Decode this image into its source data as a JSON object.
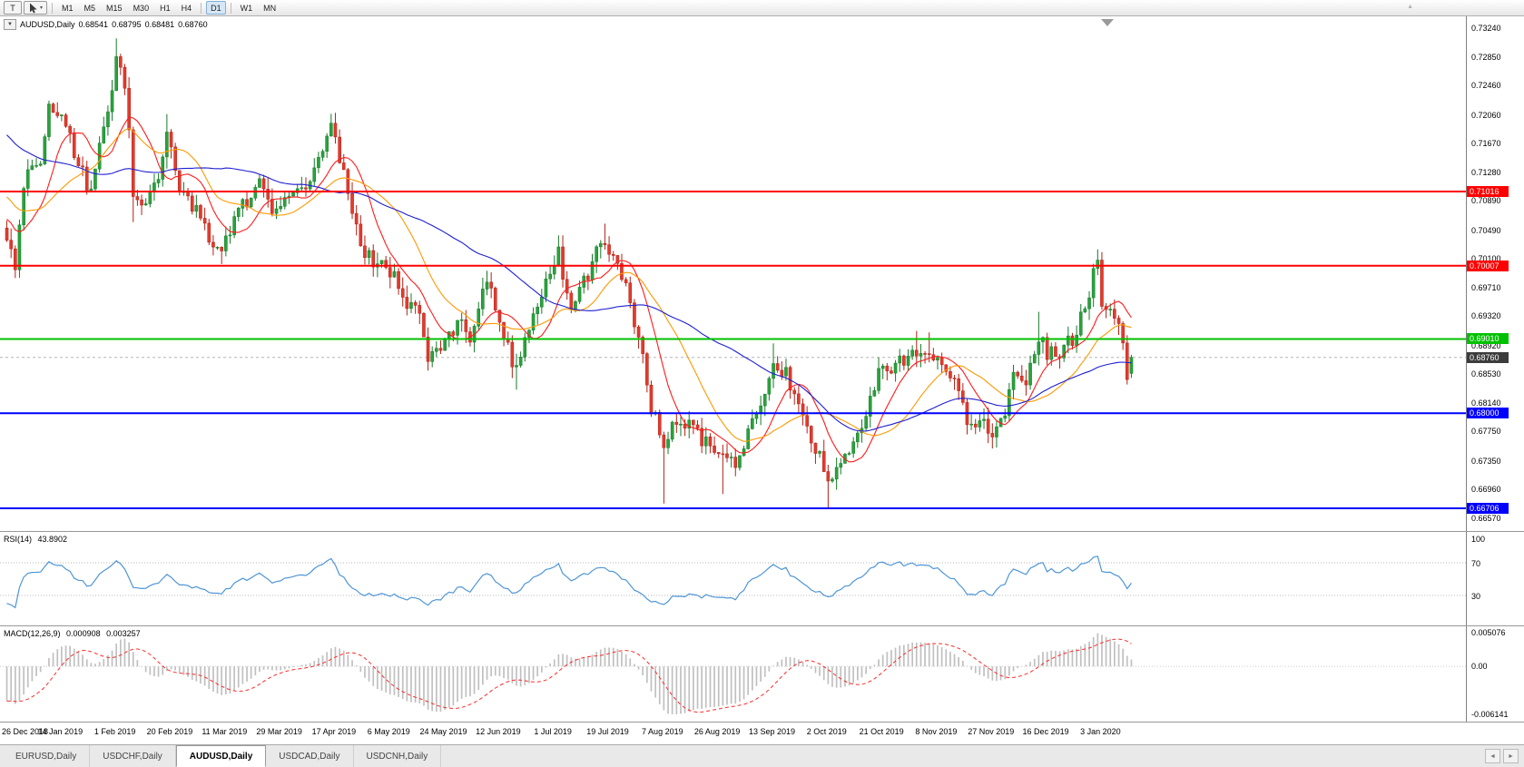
{
  "toolbar": {
    "templates_label": "T",
    "timeframes": [
      "M1",
      "M5",
      "M15",
      "M30",
      "H1",
      "H4",
      "D1",
      "W1",
      "MN"
    ],
    "active_timeframe": "D1",
    "separators_after": [
      "H4",
      "D1"
    ]
  },
  "chart": {
    "symbol_label": "AUDUSD,Daily",
    "ohlc": {
      "open": "0.68541",
      "high": "0.68795",
      "low": "0.68481",
      "close": "0.68760"
    },
    "colors": {
      "up_fill": "#2aa23c",
      "up_stroke": "#157a28",
      "down_fill": "#e23b2e",
      "down_stroke": "#b32015",
      "axis_line": "#808080",
      "bid_line": "#b5b5b5"
    },
    "price_axis": {
      "max": 0.7324,
      "min": 0.6657,
      "ticks": [
        "0.73240",
        "0.72850",
        "0.72460",
        "0.72060",
        "0.71670",
        "0.71280",
        "0.70890",
        "0.70490",
        "0.70100",
        "0.69710",
        "0.69320",
        "0.68920",
        "0.68530",
        "0.68140",
        "0.67750",
        "0.67350",
        "0.66960",
        "0.66570"
      ]
    },
    "levels": [
      {
        "value": 0.71016,
        "label": "0.71016",
        "color": "#ff0000",
        "width": 2
      },
      {
        "value": 0.70007,
        "label": "0.70007",
        "color": "#ff0000",
        "width": 2
      },
      {
        "value": 0.6901,
        "label": "0.69010",
        "color": "#00c000",
        "width": 2
      },
      {
        "value": 0.68,
        "label": "0.68000",
        "color": "#0000ff",
        "width": 2
      },
      {
        "value": 0.66706,
        "label": "0.66706",
        "color": "#0000ff",
        "width": 2
      }
    ],
    "bid": {
      "value": 0.6876,
      "label": "0.68760",
      "tag_bg": "#3c3c3c"
    },
    "moving_averages": [
      {
        "name": "ma-fast",
        "period": 10,
        "color": "#ff1a1a"
      },
      {
        "name": "ma-medium",
        "period": 21,
        "color": "#ff9900"
      },
      {
        "name": "ma-slow",
        "period": 50,
        "color": "#1f1fd0"
      }
    ],
    "series": {
      "count": 268,
      "noise": 0.0011,
      "wick": 0.0016,
      "prehistory_anchors": [
        [
          -60,
          0.735
        ],
        [
          -45,
          0.729
        ],
        [
          -30,
          0.722
        ],
        [
          -15,
          0.712
        ],
        [
          -1,
          0.7045
        ]
      ],
      "anchors": [
        [
          0,
          0.704
        ],
        [
          2,
          0.6992
        ],
        [
          4,
          0.7115
        ],
        [
          8,
          0.715
        ],
        [
          10,
          0.722
        ],
        [
          14,
          0.719
        ],
        [
          18,
          0.7125
        ],
        [
          20,
          0.71
        ],
        [
          22,
          0.717
        ],
        [
          25,
          0.724
        ],
        [
          26,
          0.729
        ],
        [
          28,
          0.725
        ],
        [
          30,
          0.7105
        ],
        [
          33,
          0.7085
        ],
        [
          36,
          0.7115
        ],
        [
          38,
          0.719
        ],
        [
          41,
          0.7095
        ],
        [
          45,
          0.708
        ],
        [
          48,
          0.7032
        ],
        [
          51,
          0.7012
        ],
        [
          54,
          0.7068
        ],
        [
          57,
          0.709
        ],
        [
          60,
          0.7128
        ],
        [
          63,
          0.7082
        ],
        [
          66,
          0.7096
        ],
        [
          70,
          0.711
        ],
        [
          73,
          0.7125
        ],
        [
          77,
          0.7192
        ],
        [
          79,
          0.715
        ],
        [
          82,
          0.7062
        ],
        [
          85,
          0.7018
        ],
        [
          88,
          0.7005
        ],
        [
          92,
          0.6988
        ],
        [
          95,
          0.6952
        ],
        [
          98,
          0.6936
        ],
        [
          100,
          0.6876
        ],
        [
          104,
          0.6896
        ],
        [
          107,
          0.6926
        ],
        [
          110,
          0.6906
        ],
        [
          114,
          0.6988
        ],
        [
          117,
          0.6926
        ],
        [
          121,
          0.6856
        ],
        [
          124,
          0.6922
        ],
        [
          127,
          0.6962
        ],
        [
          131,
          0.7018
        ],
        [
          134,
          0.6936
        ],
        [
          137,
          0.6976
        ],
        [
          140,
          0.7016
        ],
        [
          142,
          0.704
        ],
        [
          145,
          0.7
        ],
        [
          148,
          0.6952
        ],
        [
          151,
          0.6878
        ],
        [
          153,
          0.6806
        ],
        [
          156,
          0.6762
        ],
        [
          159,
          0.679
        ],
        [
          162,
          0.6782
        ],
        [
          165,
          0.6766
        ],
        [
          168,
          0.6756
        ],
        [
          170,
          0.6752
        ],
        [
          173,
          0.6736
        ],
        [
          176,
          0.6772
        ],
        [
          179,
          0.6816
        ],
        [
          182,
          0.6866
        ],
        [
          185,
          0.6858
        ],
        [
          188,
          0.6802
        ],
        [
          191,
          0.6762
        ],
        [
          195,
          0.6712
        ],
        [
          198,
          0.6736
        ],
        [
          201,
          0.6766
        ],
        [
          204,
          0.6796
        ],
        [
          207,
          0.685
        ],
        [
          210,
          0.6862
        ],
        [
          213,
          0.6876
        ],
        [
          216,
          0.6886
        ],
        [
          219,
          0.689
        ],
        [
          222,
          0.6862
        ],
        [
          225,
          0.684
        ],
        [
          228,
          0.6792
        ],
        [
          231,
          0.6786
        ],
        [
          234,
          0.6776
        ],
        [
          237,
          0.6802
        ],
        [
          239,
          0.6846
        ],
        [
          242,
          0.6836
        ],
        [
          245,
          0.6906
        ],
        [
          247,
          0.6882
        ],
        [
          250,
          0.6886
        ],
        [
          253,
          0.6902
        ],
        [
          256,
          0.6946
        ],
        [
          258,
          0.6986
        ],
        [
          259,
          0.7
        ],
        [
          260,
          0.6952
        ],
        [
          262,
          0.6938
        ],
        [
          264,
          0.693
        ],
        [
          265,
          0.6905
        ],
        [
          266,
          0.6854
        ],
        [
          267,
          0.6876
        ]
      ],
      "wick_highs": [
        [
          26,
          0.731
        ],
        [
          38,
          0.7207
        ],
        [
          77,
          0.7206
        ],
        [
          131,
          0.7042
        ],
        [
          142,
          0.7058
        ],
        [
          182,
          0.6895
        ],
        [
          216,
          0.6912
        ],
        [
          219,
          0.691
        ],
        [
          245,
          0.6938
        ],
        [
          259,
          0.7023
        ]
      ],
      "wick_lows": [
        [
          2,
          0.6984
        ],
        [
          30,
          0.706
        ],
        [
          51,
          0.7003
        ],
        [
          100,
          0.6865
        ],
        [
          121,
          0.6832
        ],
        [
          156,
          0.6677
        ],
        [
          170,
          0.669
        ],
        [
          195,
          0.6671
        ],
        [
          235,
          0.6754
        ]
      ]
    },
    "x_axis": {
      "labels": [
        {
          "i": 0,
          "text": "26 Dec 2018"
        },
        {
          "i": 13,
          "text": "14 Jan 2019"
        },
        {
          "i": 26,
          "text": "1 Feb 2019"
        },
        {
          "i": 39,
          "text": "20 Feb 2019"
        },
        {
          "i": 52,
          "text": "11 Mar 2019"
        },
        {
          "i": 65,
          "text": "29 Mar 2019"
        },
        {
          "i": 78,
          "text": "17 Apr 2019"
        },
        {
          "i": 91,
          "text": "6 May 2019"
        },
        {
          "i": 104,
          "text": "24 May 2019"
        },
        {
          "i": 117,
          "text": "12 Jun 2019"
        },
        {
          "i": 130,
          "text": "1 Jul 2019"
        },
        {
          "i": 143,
          "text": "19 Jul 2019"
        },
        {
          "i": 156,
          "text": "7 Aug 2019"
        },
        {
          "i": 169,
          "text": "26 Aug 2019"
        },
        {
          "i": 182,
          "text": "13 Sep 2019"
        },
        {
          "i": 195,
          "text": "2 Oct 2019"
        },
        {
          "i": 208,
          "text": "21 Oct 2019"
        },
        {
          "i": 221,
          "text": "8 Nov 2019"
        },
        {
          "i": 234,
          "text": "27 Nov 2019"
        },
        {
          "i": 247,
          "text": "16 Dec 2019"
        },
        {
          "i": 260,
          "text": "3 Jan 2020"
        }
      ]
    }
  },
  "rsi": {
    "name": "RSI(14)",
    "value": "43.8902",
    "color": "#4f96d6",
    "levels": [
      {
        "v": 100,
        "label": "100"
      },
      {
        "v": 70,
        "label": "70"
      },
      {
        "v": 30,
        "label": "30"
      }
    ]
  },
  "macd": {
    "name": "MACD(12,26,9)",
    "value_main": "0.000908",
    "value_signal": "0.003257",
    "axis": {
      "top": "0.005076",
      "zero": "0.00",
      "bottom": "-0.006141"
    },
    "hist_color": "#c0c0c0",
    "signal_color": "#ff2a2a"
  },
  "tabs": {
    "items": [
      {
        "label": "EURUSD,Daily",
        "active": false
      },
      {
        "label": "USDCHF,Daily",
        "active": false
      },
      {
        "label": "AUDUSD,Daily",
        "active": true
      },
      {
        "label": "USDCAD,Daily",
        "active": false
      },
      {
        "label": "USDCNH,Daily",
        "active": false
      }
    ]
  },
  "chart_data": {
    "type": "candlestick",
    "symbol": "AUDUSD",
    "timeframe": "Daily",
    "visible_range": {
      "from": "26 Dec 2018",
      "to": "3 Jan 2020"
    },
    "last_candle": {
      "open": 0.68541,
      "high": 0.68795,
      "low": 0.68481,
      "close": 0.6876
    },
    "price_axis_range": [
      0.6657,
      0.7324
    ],
    "horizontal_lines": [
      0.71016,
      0.70007,
      0.6901,
      0.68,
      0.66706
    ],
    "indicators": [
      {
        "name": "RSI",
        "period": 14,
        "value": 43.8902
      },
      {
        "name": "MACD",
        "params": [
          12,
          26,
          9
        ],
        "values": [
          0.000908,
          0.003257
        ]
      }
    ]
  }
}
